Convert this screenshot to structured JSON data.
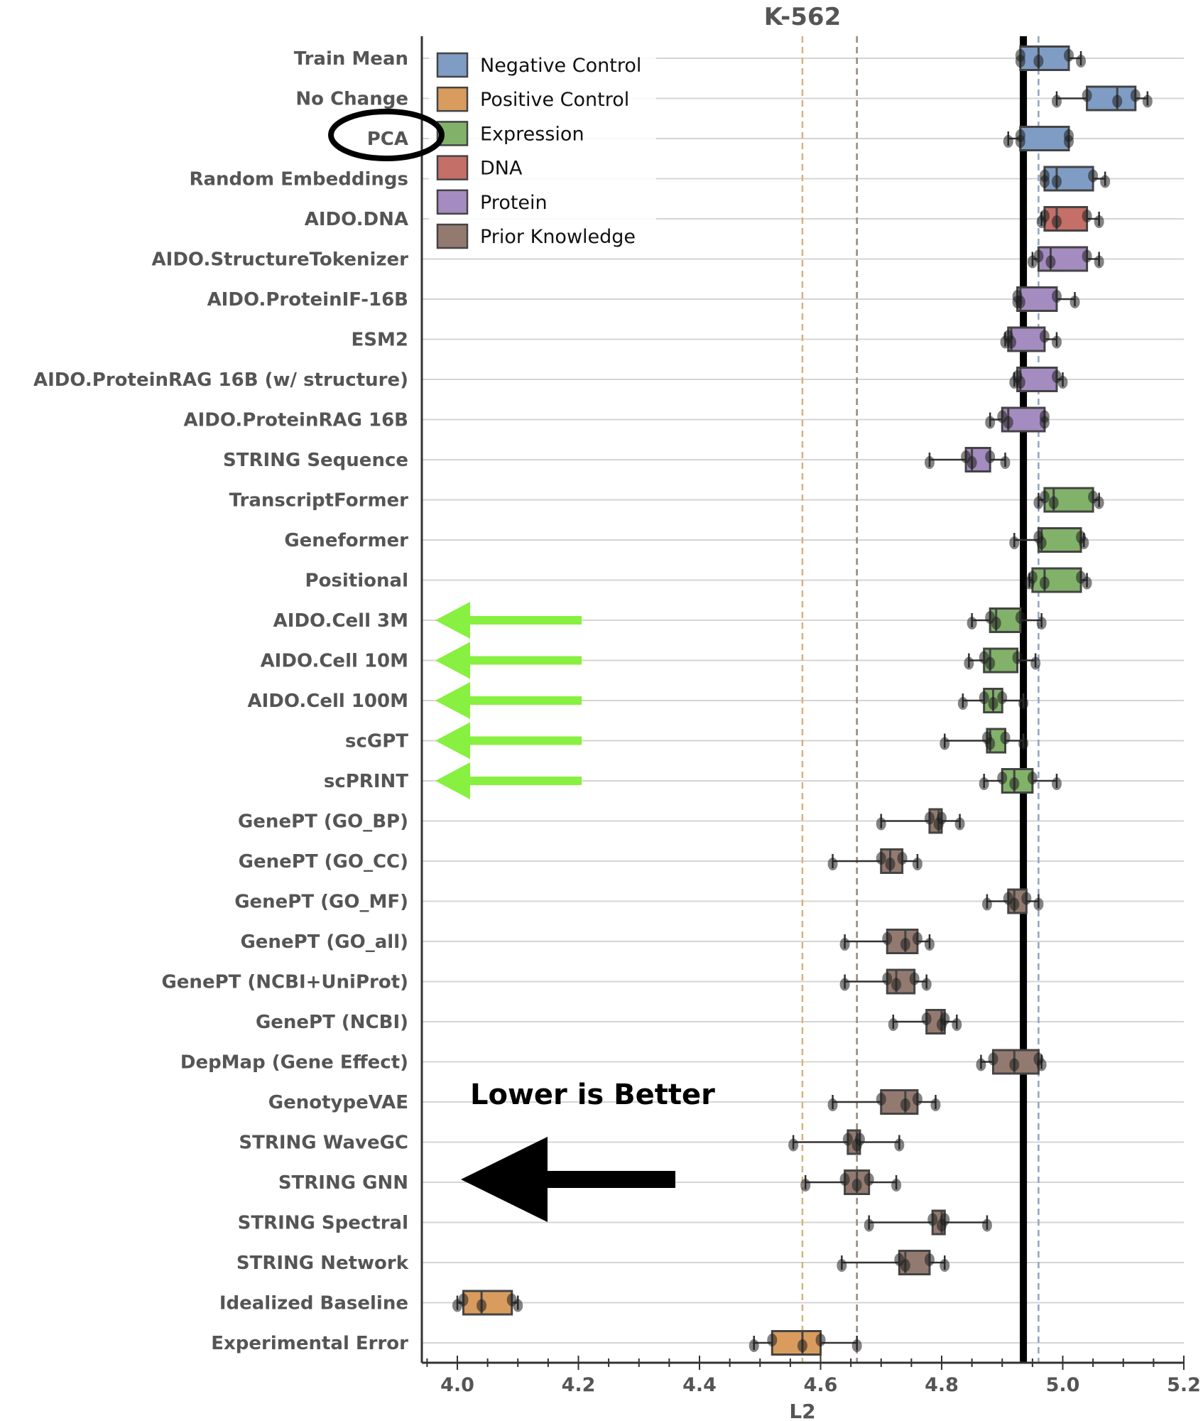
{
  "chart_data": {
    "type": "box",
    "title": "K-562",
    "xlabel": "L2",
    "ylabel": "",
    "xlim": [
      3.94,
      5.2
    ],
    "xticks": [
      "4.0",
      "4.2",
      "4.4",
      "4.6",
      "4.8",
      "5.0",
      "5.2"
    ],
    "grid": "horizontal",
    "legend_placement": "top-left",
    "legend": [
      {
        "name": "Negative Control",
        "color": "#7f9cc4"
      },
      {
        "name": "Positive Control",
        "color": "#d99c5e"
      },
      {
        "name": "Expression",
        "color": "#82b26a"
      },
      {
        "name": "DNA",
        "color": "#c46f68"
      },
      {
        "name": "Protein",
        "color": "#a48cc0"
      },
      {
        "name": "Prior Knowledge",
        "color": "#937a70"
      }
    ],
    "reference_lines": [
      {
        "value": 4.935,
        "style": "solid",
        "color": "#000000"
      },
      {
        "value": 4.96,
        "style": "dashed",
        "color": "#8fa3c4"
      },
      {
        "value": 4.57,
        "style": "dashed",
        "color": "#d9b07e"
      },
      {
        "value": 4.66,
        "style": "dashed",
        "color": "#9a857c"
      }
    ],
    "series_note_fields": [
      "min",
      "q1",
      "median",
      "q3",
      "max"
    ],
    "rows": [
      {
        "label": "Train Mean",
        "group": "Negative Control",
        "stats": [
          4.93,
          4.93,
          4.96,
          5.01,
          5.03
        ]
      },
      {
        "label": "No Change",
        "group": "Negative Control",
        "stats": [
          4.99,
          5.04,
          5.09,
          5.12,
          5.14
        ]
      },
      {
        "label": "PCA",
        "group": "Negative Control",
        "stats": [
          4.91,
          4.93,
          4.93,
          5.01,
          5.01
        ]
      },
      {
        "label": "Random Embeddings",
        "group": "Negative Control",
        "stats": [
          4.97,
          4.97,
          4.99,
          5.05,
          5.07
        ]
      },
      {
        "label": "AIDO.DNA",
        "group": "DNA",
        "stats": [
          4.965,
          4.97,
          4.99,
          5.04,
          5.06
        ]
      },
      {
        "label": "AIDO.StructureTokenizer",
        "group": "Protein",
        "stats": [
          4.95,
          4.96,
          4.98,
          5.04,
          5.06
        ]
      },
      {
        "label": "AIDO.ProteinIF-16B",
        "group": "Protein",
        "stats": [
          4.925,
          4.925,
          4.93,
          4.99,
          5.02
        ]
      },
      {
        "label": "ESM2",
        "group": "Protein",
        "stats": [
          4.905,
          4.91,
          4.915,
          4.97,
          4.99
        ]
      },
      {
        "label": "AIDO.ProteinRAG 16B (w/ structure)",
        "group": "Protein",
        "stats": [
          4.92,
          4.925,
          4.93,
          4.99,
          5.0
        ]
      },
      {
        "label": "AIDO.ProteinRAG 16B",
        "group": "Protein",
        "stats": [
          4.88,
          4.9,
          4.91,
          4.97,
          4.97
        ]
      },
      {
        "label": "STRING Sequence",
        "group": "Protein",
        "stats": [
          4.78,
          4.84,
          4.85,
          4.88,
          4.905
        ]
      },
      {
        "label": "TranscriptFormer",
        "group": "Expression",
        "stats": [
          4.96,
          4.97,
          4.985,
          5.05,
          5.06
        ]
      },
      {
        "label": "Geneformer",
        "group": "Expression",
        "stats": [
          4.92,
          4.96,
          4.965,
          5.03,
          5.035
        ]
      },
      {
        "label": "Positional",
        "group": "Expression",
        "stats": [
          4.945,
          4.95,
          4.97,
          5.03,
          5.04
        ]
      },
      {
        "label": "AIDO.Cell 3M",
        "group": "Expression",
        "stats": [
          4.85,
          4.88,
          4.89,
          4.93,
          4.965
        ]
      },
      {
        "label": "AIDO.Cell 10M",
        "group": "Expression",
        "stats": [
          4.845,
          4.87,
          4.88,
          4.925,
          4.955
        ]
      },
      {
        "label": "AIDO.Cell 100M",
        "group": "Expression",
        "stats": [
          4.835,
          4.87,
          4.885,
          4.9,
          4.935
        ]
      },
      {
        "label": "scGPT",
        "group": "Expression",
        "stats": [
          4.805,
          4.875,
          4.88,
          4.905,
          4.935
        ]
      },
      {
        "label": "scPRINT",
        "group": "Expression",
        "stats": [
          4.87,
          4.9,
          4.92,
          4.95,
          4.99
        ]
      },
      {
        "label": "GenePT (GO_BP)",
        "group": "Prior Knowledge",
        "stats": [
          4.7,
          4.78,
          4.795,
          4.8,
          4.83
        ]
      },
      {
        "label": "GenePT (GO_CC)",
        "group": "Prior Knowledge",
        "stats": [
          4.62,
          4.7,
          4.715,
          4.735,
          4.76
        ]
      },
      {
        "label": "GenePT (GO_MF)",
        "group": "Prior Knowledge",
        "stats": [
          4.875,
          4.91,
          4.92,
          4.94,
          4.96
        ]
      },
      {
        "label": "GenePT (GO_all)",
        "group": "Prior Knowledge",
        "stats": [
          4.64,
          4.71,
          4.74,
          4.76,
          4.78
        ]
      },
      {
        "label": "GenePT (NCBI+UniProt)",
        "group": "Prior Knowledge",
        "stats": [
          4.64,
          4.71,
          4.725,
          4.755,
          4.775
        ]
      },
      {
        "label": "GenePT (NCBI)",
        "group": "Prior Knowledge",
        "stats": [
          4.72,
          4.775,
          4.8,
          4.805,
          4.825
        ]
      },
      {
        "label": "DepMap (Gene Effect)",
        "group": "Prior Knowledge",
        "stats": [
          4.865,
          4.885,
          4.92,
          4.96,
          4.965
        ]
      },
      {
        "label": "GenotypeVAE",
        "group": "Prior Knowledge",
        "stats": [
          4.62,
          4.7,
          4.74,
          4.76,
          4.79
        ]
      },
      {
        "label": "STRING WaveGC",
        "group": "Prior Knowledge",
        "stats": [
          4.555,
          4.645,
          4.66,
          4.665,
          4.73
        ]
      },
      {
        "label": "STRING GNN",
        "group": "Prior Knowledge",
        "stats": [
          4.575,
          4.64,
          4.66,
          4.68,
          4.725
        ]
      },
      {
        "label": "STRING Spectral",
        "group": "Prior Knowledge",
        "stats": [
          4.68,
          4.785,
          4.8,
          4.805,
          4.875
        ]
      },
      {
        "label": "STRING Network",
        "group": "Prior Knowledge",
        "stats": [
          4.635,
          4.73,
          4.74,
          4.78,
          4.805
        ]
      },
      {
        "label": "Idealized Baseline",
        "group": "Positive Control",
        "stats": [
          4.0,
          4.01,
          4.04,
          4.09,
          4.1
        ]
      },
      {
        "label": "Experimental Error",
        "group": "Positive Control",
        "stats": [
          4.49,
          4.52,
          4.57,
          4.6,
          4.66
        ]
      }
    ],
    "annotations": {
      "circled_label": "PCA",
      "green_arrow_rows": [
        "AIDO.Cell 3M",
        "AIDO.Cell 10M",
        "AIDO.Cell 100M",
        "scGPT",
        "scPRINT"
      ],
      "green_arrow_color": "#88f040",
      "text": "Lower is Better",
      "big_arrow_direction": "left"
    }
  }
}
